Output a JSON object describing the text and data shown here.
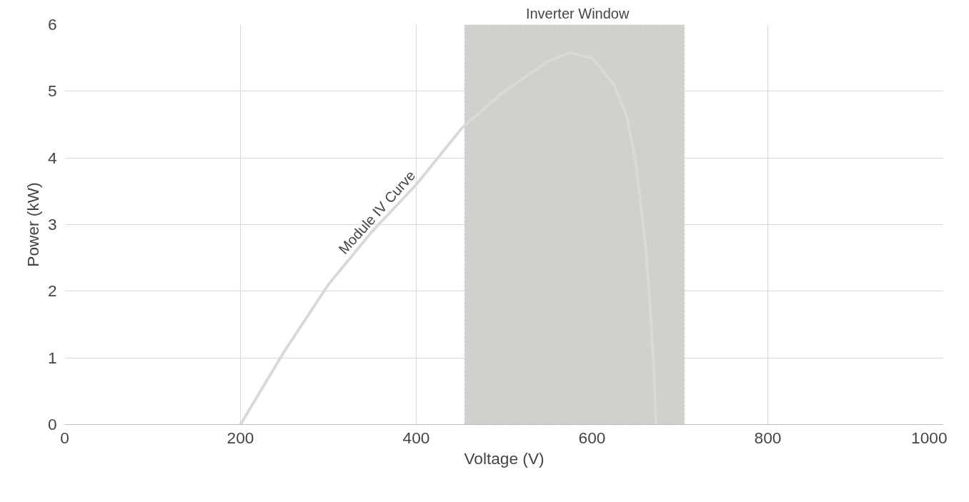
{
  "chart_data": {
    "type": "line",
    "xlabel": "Voltage (V)",
    "ylabel": "Power (kW)",
    "x": [
      200,
      250,
      300,
      350,
      400,
      452,
      500,
      550,
      575,
      600,
      625,
      640,
      650,
      660,
      665,
      670,
      673
    ],
    "series": [
      {
        "type": "line",
        "color": "#d9d9d9",
        "values": [
          0,
          1.1,
          2.1,
          2.9,
          3.6,
          4.45,
          5.0,
          5.45,
          5.58,
          5.5,
          5.1,
          4.6,
          3.9,
          2.8,
          2.0,
          0.9,
          0
        ]
      }
    ],
    "xlim": [
      0,
      1000
    ],
    "xticks": [
      0,
      200,
      400,
      600,
      800,
      1000
    ],
    "ylim": [
      0,
      6
    ],
    "yticks": [
      0,
      1,
      2,
      3,
      4,
      5,
      6
    ],
    "grid": true,
    "marker": "none",
    "line_style": "solid",
    "bands": [
      {
        "axis": "x",
        "from": 455,
        "to": 705,
        "label": "Inverter Window",
        "color": "#d0d0cc"
      }
    ],
    "annotations": [
      "Module IV Curve"
    ]
  }
}
